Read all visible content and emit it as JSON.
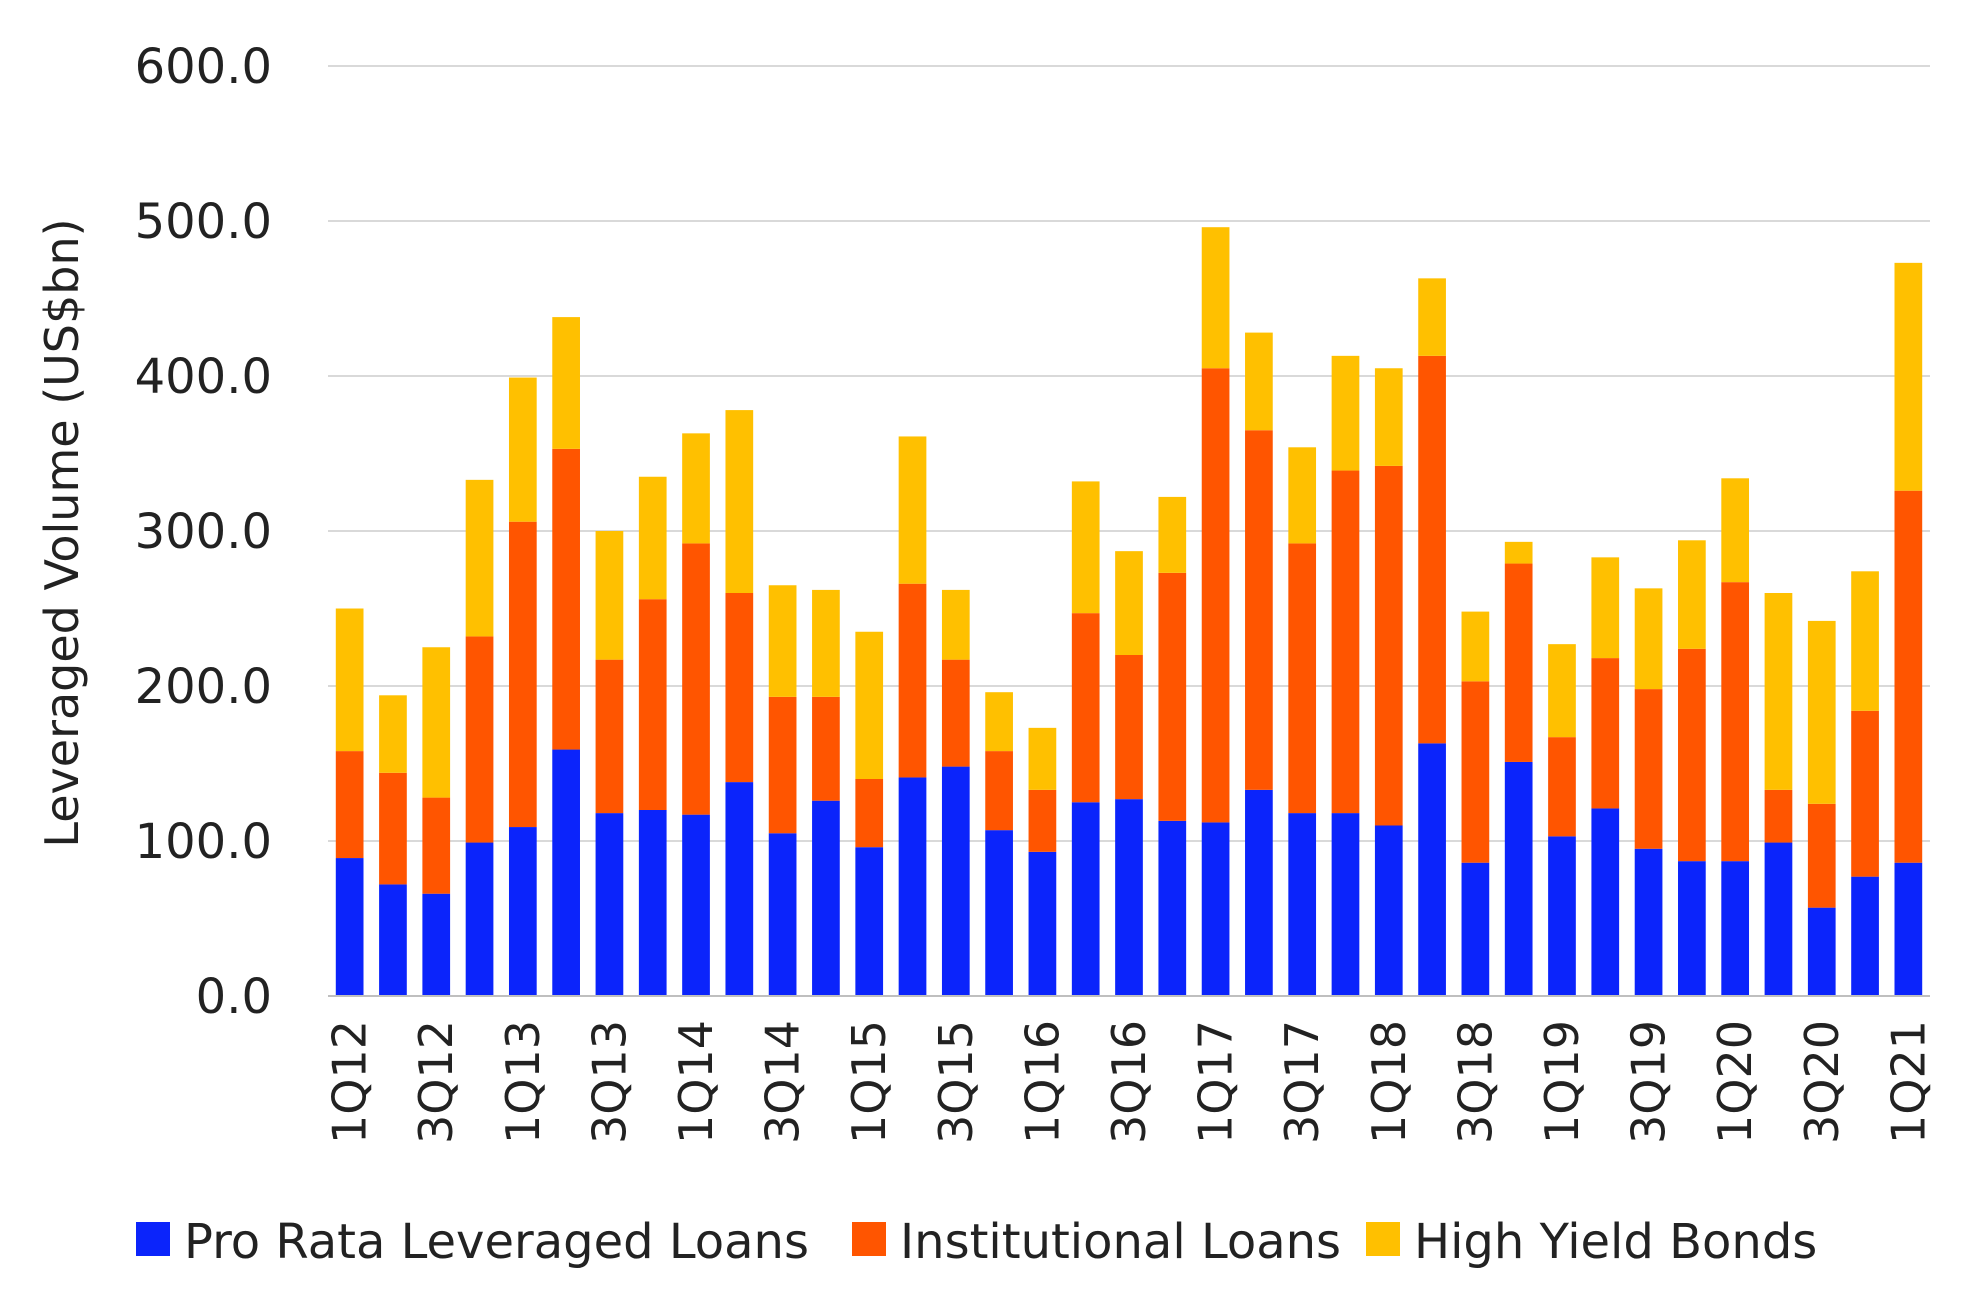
{
  "chart_data": {
    "type": "bar",
    "stacked": true,
    "ylabel": "Leveraged  Volume (US$bn)",
    "ylim": [
      0,
      600
    ],
    "yticks": [
      "0.0",
      "100.0",
      "200.0",
      "300.0",
      "400.0",
      "500.0",
      "600.0"
    ],
    "grid": true,
    "legend_position": "bottom",
    "categories": [
      "1Q12",
      "2Q12",
      "3Q12",
      "4Q12",
      "1Q13",
      "2Q13",
      "3Q13",
      "4Q13",
      "1Q14",
      "2Q14",
      "3Q14",
      "4Q14",
      "1Q15",
      "2Q15",
      "3Q15",
      "4Q15",
      "1Q16",
      "2Q16",
      "3Q16",
      "4Q16",
      "1Q17",
      "2Q17",
      "3Q17",
      "4Q17",
      "1Q18",
      "2Q18",
      "3Q18",
      "4Q18",
      "1Q19",
      "2Q19",
      "3Q19",
      "4Q19",
      "1Q20",
      "2Q20",
      "3Q20",
      "4Q20",
      "1Q21"
    ],
    "shown_x_labels": [
      "1Q12",
      "3Q12",
      "1Q13",
      "3Q13",
      "1Q14",
      "3Q14",
      "1Q15",
      "3Q15",
      "1Q16",
      "3Q16",
      "1Q17",
      "3Q17",
      "1Q18",
      "3Q18",
      "1Q19",
      "3Q19",
      "1Q20",
      "3Q20",
      "1Q21"
    ],
    "series": [
      {
        "name": "Pro Rata Leveraged Loans",
        "color": "#0b24fb",
        "values": [
          89,
          72,
          66,
          99,
          109,
          159,
          118,
          120,
          117,
          138,
          105,
          126,
          96,
          141,
          148,
          107,
          93,
          125,
          127,
          113,
          112,
          133,
          118,
          118,
          110,
          163,
          86,
          151,
          103,
          121,
          95,
          87,
          87,
          99,
          57,
          77,
          86
        ]
      },
      {
        "name": "Institutional Loans",
        "color": "#ff5500",
        "values": [
          69,
          72,
          62,
          133,
          197,
          194,
          99,
          136,
          175,
          122,
          88,
          67,
          44,
          125,
          69,
          51,
          40,
          122,
          93,
          160,
          293,
          232,
          174,
          221,
          232,
          250,
          117,
          128,
          64,
          97,
          103,
          137,
          180,
          34,
          67,
          107,
          240
        ]
      },
      {
        "name": "High Yield Bonds",
        "color": "#ffc000",
        "values": [
          92,
          50,
          97,
          101,
          93,
          85,
          83,
          79,
          71,
          118,
          72,
          69,
          95,
          95,
          45,
          38,
          40,
          85,
          67,
          49,
          91,
          63,
          62,
          74,
          63,
          50,
          45,
          14,
          60,
          65,
          65,
          70,
          67,
          127,
          118,
          90,
          147
        ]
      }
    ]
  }
}
